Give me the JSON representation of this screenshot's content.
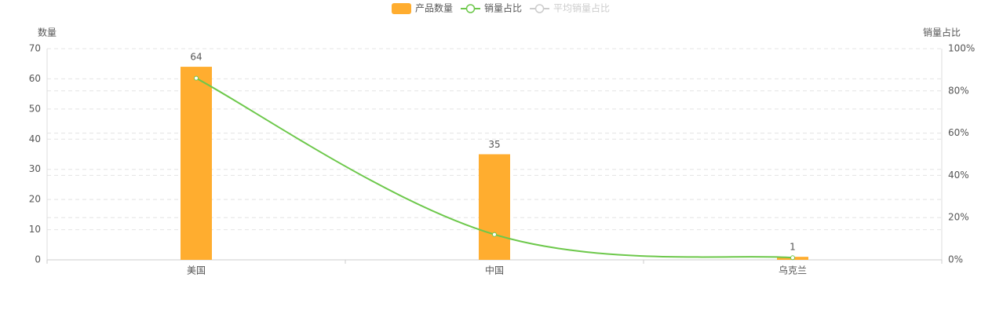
{
  "chart_data": {
    "type": "bar-line",
    "categories": [
      "美国",
      "中国",
      "乌克兰"
    ],
    "y_label": "数量",
    "y2_label": "销量占比",
    "ylim": [
      0,
      70
    ],
    "yticks": [
      0,
      10,
      20,
      30,
      40,
      50,
      60,
      70
    ],
    "y2lim": [
      0,
      100
    ],
    "y2ticks": [
      {
        "value": 0,
        "label": "0%"
      },
      {
        "value": 20,
        "label": "20%"
      },
      {
        "value": 40,
        "label": "40%"
      },
      {
        "value": 60,
        "label": "60%"
      },
      {
        "value": 80,
        "label": "80%"
      },
      {
        "value": 100,
        "label": "100%"
      }
    ],
    "grid": true,
    "series": [
      {
        "name": "产品数量",
        "type": "bar",
        "color": "#ffad2f",
        "values": [
          64,
          35,
          1
        ],
        "show_value_labels": true
      },
      {
        "name": "销量占比",
        "type": "line",
        "axis": "y2",
        "color": "#6dc84b",
        "values": [
          86,
          12,
          1
        ]
      },
      {
        "name": "平均销量占比",
        "type": "line",
        "axis": "y2",
        "color": "#cccccc",
        "hidden": true,
        "values": [
          null,
          null,
          null
        ]
      }
    ]
  }
}
